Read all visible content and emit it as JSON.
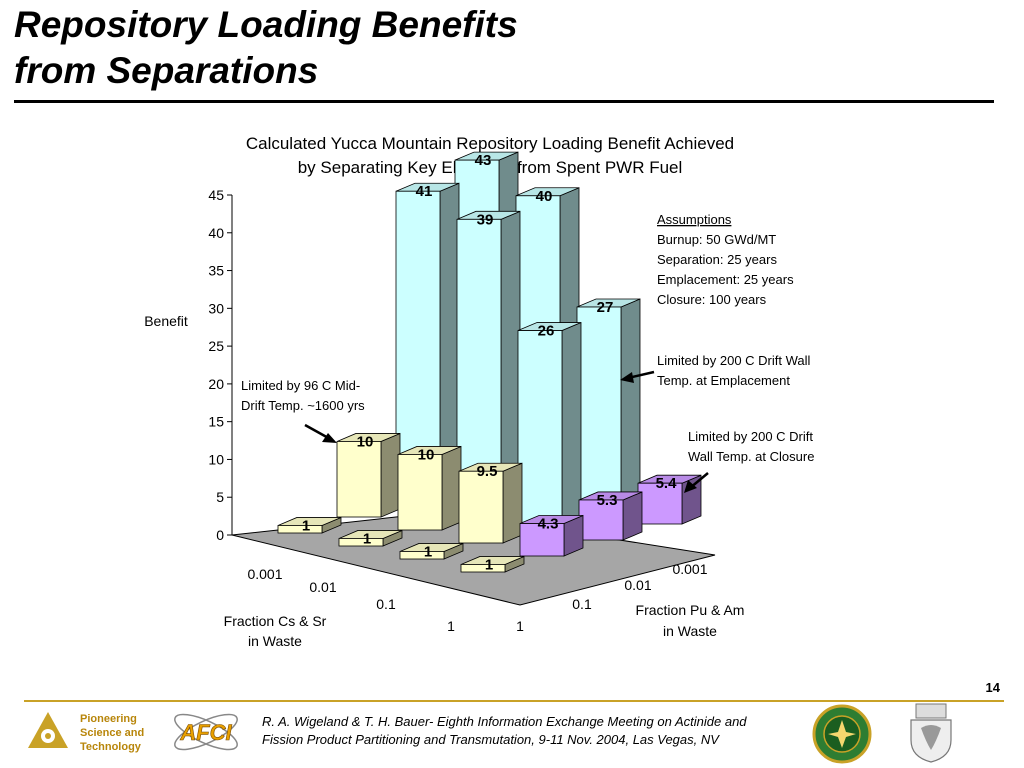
{
  "slide": {
    "title_line1": "Repository Loading Benefits",
    "title_line2": "from Separations",
    "page_number": "14"
  },
  "chart_data": {
    "type": "bar",
    "title_line1": "Calculated Yucca Mountain Repository Loading Benefit Achieved",
    "title_line2": "by Separating Key Elements from Spent PWR Fuel",
    "ylabel": "Benefit",
    "ylim": [
      0,
      45
    ],
    "yticks": [
      "0",
      "5",
      "10",
      "15",
      "20",
      "25",
      "30",
      "35",
      "40",
      "45"
    ],
    "x_axis_label_line1": "Fraction Cs & Sr",
    "x_axis_label_line2": "in Waste",
    "z_axis_label_line1": "Fraction Pu & Am",
    "z_axis_label_line2": "in Waste",
    "x_categories": [
      "0.001",
      "0.01",
      "0.1",
      "1"
    ],
    "z_categories": [
      "1",
      "0.1",
      "0.01",
      "0.001"
    ],
    "bars": [
      {
        "cs_sr": "0.001",
        "pu_am": "1",
        "value": 1,
        "label": "1"
      },
      {
        "cs_sr": "0.01",
        "pu_am": "1",
        "value": 1,
        "label": "1"
      },
      {
        "cs_sr": "0.1",
        "pu_am": "1",
        "value": 1,
        "label": "1"
      },
      {
        "cs_sr": "1",
        "pu_am": "1",
        "value": 1,
        "label": "1"
      },
      {
        "cs_sr": "0.001",
        "pu_am": "0.1",
        "value": 10,
        "label": "10"
      },
      {
        "cs_sr": "0.01",
        "pu_am": "0.1",
        "value": 10,
        "label": "10"
      },
      {
        "cs_sr": "0.1",
        "pu_am": "0.1",
        "value": 9.5,
        "label": "9.5"
      },
      {
        "cs_sr": "1",
        "pu_am": "0.1",
        "value": 4.3,
        "label": "4.3"
      },
      {
        "cs_sr": "0.001",
        "pu_am": "0.01",
        "value": 41,
        "label": "41"
      },
      {
        "cs_sr": "0.01",
        "pu_am": "0.01",
        "value": 39,
        "label": "39"
      },
      {
        "cs_sr": "0.1",
        "pu_am": "0.01",
        "value": 26,
        "label": "26"
      },
      {
        "cs_sr": "1",
        "pu_am": "0.01",
        "value": 5.3,
        "label": "5.3"
      },
      {
        "cs_sr": "0.001",
        "pu_am": "0.001",
        "value": 43,
        "label": "43"
      },
      {
        "cs_sr": "0.01",
        "pu_am": "0.001",
        "value": 40,
        "label": "40"
      },
      {
        "cs_sr": "0.1",
        "pu_am": "0.001",
        "value": 27,
        "label": "27"
      },
      {
        "cs_sr": "1",
        "pu_am": "0.001",
        "value": 5.4,
        "label": "5.4"
      }
    ],
    "colors": {
      "low_bar": "#ffffcc",
      "high_bar": "#ccffff",
      "purple_bar": "#cc99ff",
      "floor": "#a6a6a6"
    },
    "assumptions": {
      "heading": "Assumptions",
      "lines": [
        "Burnup: 50 GWd/MT",
        "Separation: 25 years",
        "Emplacement: 25 years",
        "Closure: 100 years"
      ]
    },
    "annotations": [
      {
        "lines": [
          "Limited by 96 C Mid-",
          "Drift Temp. ~1600 yrs"
        ]
      },
      {
        "lines": [
          "Limited by  200 C Drift Wall",
          "Temp. at Emplacement"
        ]
      },
      {
        "lines": [
          "Limited by 200 C Drift",
          "Wall Temp. at Closure"
        ]
      }
    ]
  },
  "footer": {
    "org_line1": "Pioneering",
    "org_line2": "Science and",
    "org_line3": "Technology",
    "citation_line1": "R. A. Wigeland & T. H. Bauer- Eighth Information Exchange Meeting on Actinide and",
    "citation_line2": "Fission Product Partitioning and Transmutation, 9-11 Nov. 2004, Las Vegas, NV",
    "afci_label": "AFCI"
  }
}
